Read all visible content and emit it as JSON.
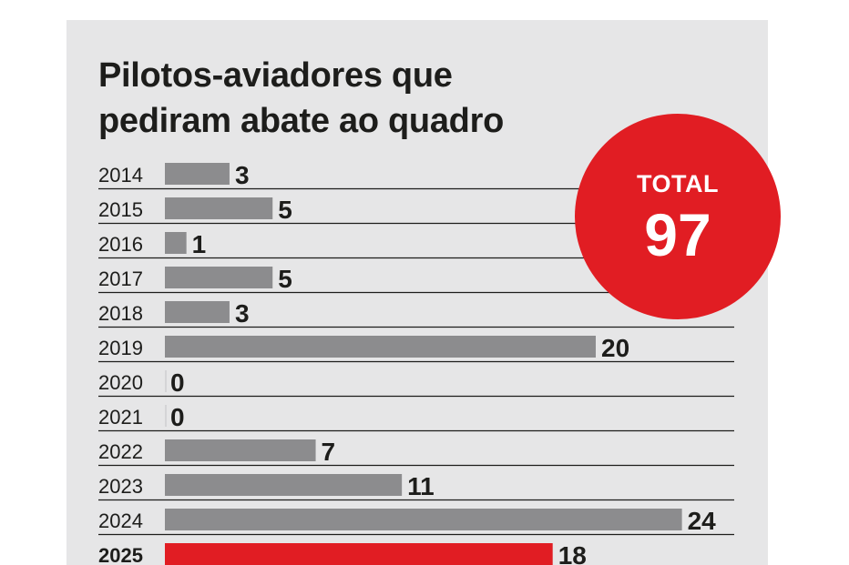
{
  "chart_data": {
    "type": "bar",
    "orientation": "horizontal",
    "title": "Pilotos-aviadores que pediram abate ao quadro",
    "categories": [
      "2014",
      "2015",
      "2016",
      "2017",
      "2018",
      "2019",
      "2020",
      "2021",
      "2022",
      "2023",
      "2024",
      "2025"
    ],
    "values": [
      3,
      5,
      1,
      5,
      3,
      20,
      0,
      0,
      7,
      11,
      24,
      18
    ],
    "highlight_category": "2025",
    "total_label": "TOTAL",
    "total_value": "97",
    "xlim": [
      0,
      24
    ],
    "grid": false,
    "colors": {
      "bar": "#8c8c8e",
      "highlight_bar": "#e11d23",
      "badge": "#e11d23",
      "background": "#e6e6e7",
      "row_line": "#1d1d1b"
    }
  }
}
